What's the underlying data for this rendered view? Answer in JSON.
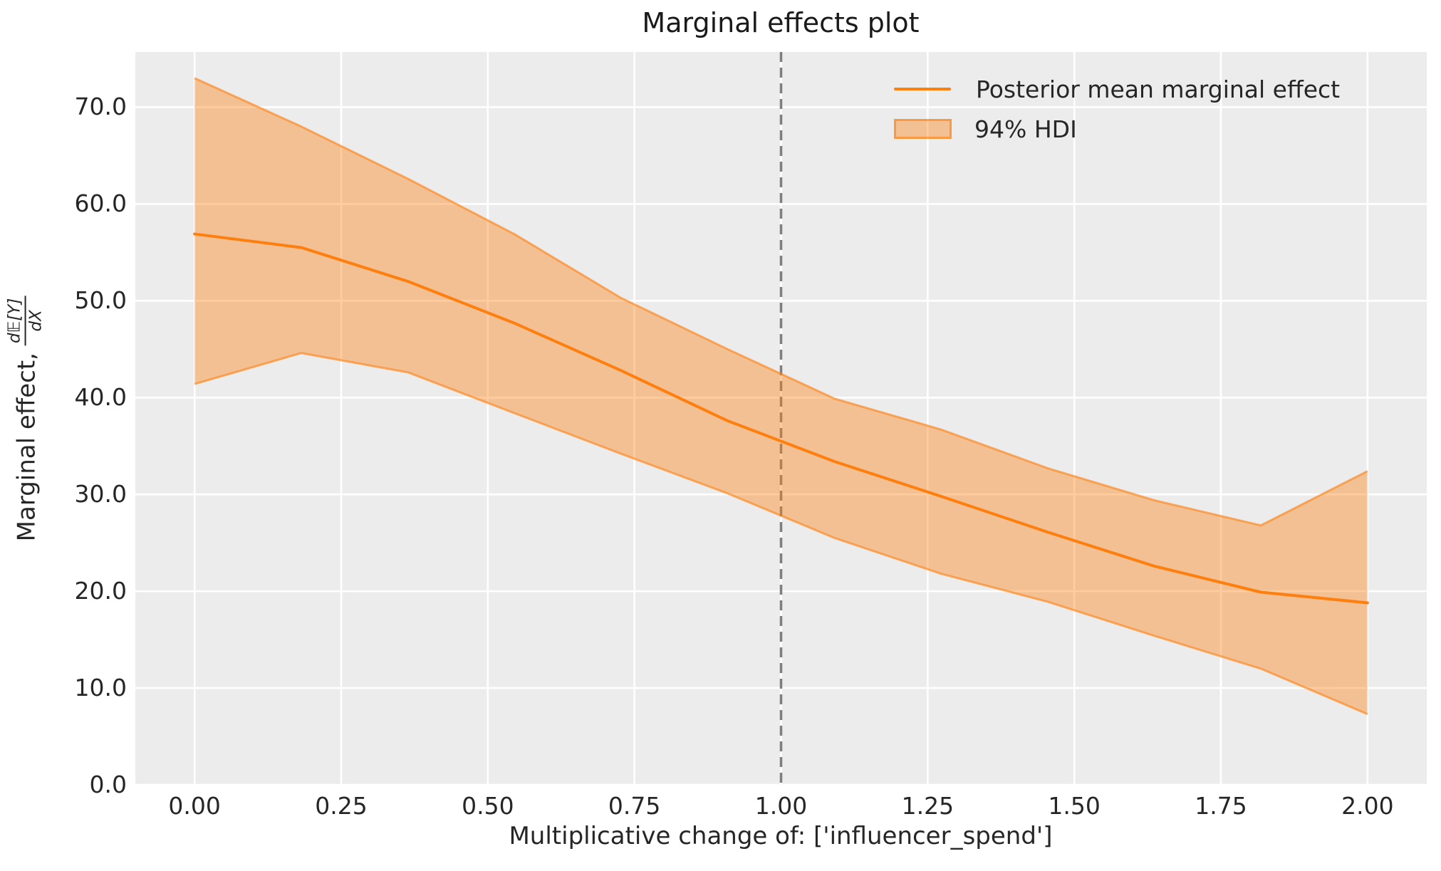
{
  "colors": {
    "line": "#ff7f0e",
    "band_fill": "rgba(255,127,14,0.4)",
    "band_edge": "rgba(255,127,14,0.6)",
    "reference_line": "#7f7f7f",
    "plot_bg": "#ececec",
    "grid": "#ffffff",
    "text": "#262626"
  },
  "chart_data": {
    "type": "line",
    "title": "Marginal effects plot",
    "xlabel": "Multiplicative change of: ['influencer_spend']",
    "ylabel_prefix": "Marginal effect, ",
    "ylabel_frac_numerator": "d𝔼[Y]",
    "ylabel_frac_denominator": "dX",
    "x": [
      0.0,
      0.182,
      0.364,
      0.545,
      0.727,
      0.909,
      1.091,
      1.273,
      1.455,
      1.636,
      1.818,
      2.0
    ],
    "series": [
      {
        "name": "Posterior mean marginal effect",
        "role": "mean",
        "values": [
          56.9,
          55.5,
          52.0,
          47.7,
          42.8,
          37.6,
          33.4,
          29.8,
          26.1,
          22.6,
          19.9,
          18.8
        ]
      },
      {
        "name": "94% HDI",
        "role": "band",
        "upper": [
          73.0,
          68.0,
          62.6,
          56.9,
          50.3,
          45.0,
          39.9,
          36.7,
          32.7,
          29.4,
          26.8,
          32.4
        ],
        "lower": [
          41.4,
          44.6,
          42.6,
          38.4,
          34.2,
          30.1,
          25.5,
          21.8,
          18.9,
          15.4,
          12.0,
          7.3
        ]
      }
    ],
    "reference_line_x": 1.0,
    "x_ticks": {
      "values": [
        0.0,
        0.25,
        0.5,
        0.75,
        1.0,
        1.25,
        1.5,
        1.75,
        2.0
      ],
      "labels": [
        "0.00",
        "0.25",
        "0.50",
        "0.75",
        "1.00",
        "1.25",
        "1.50",
        "1.75",
        "2.00"
      ]
    },
    "y_ticks": {
      "values": [
        0,
        10,
        20,
        30,
        40,
        50,
        60,
        70
      ],
      "labels": [
        "0.0",
        "10.0",
        "20.0",
        "30.0",
        "40.0",
        "50.0",
        "60.0",
        "70.0"
      ]
    },
    "xlim": [
      -0.101,
      2.101
    ],
    "ylim": [
      0,
      75.7
    ],
    "grid": true,
    "legend": {
      "position": "upper right",
      "items": [
        {
          "label": "Posterior mean marginal effect",
          "swatch": "line"
        },
        {
          "label": "94% HDI",
          "swatch": "patch"
        }
      ]
    }
  }
}
